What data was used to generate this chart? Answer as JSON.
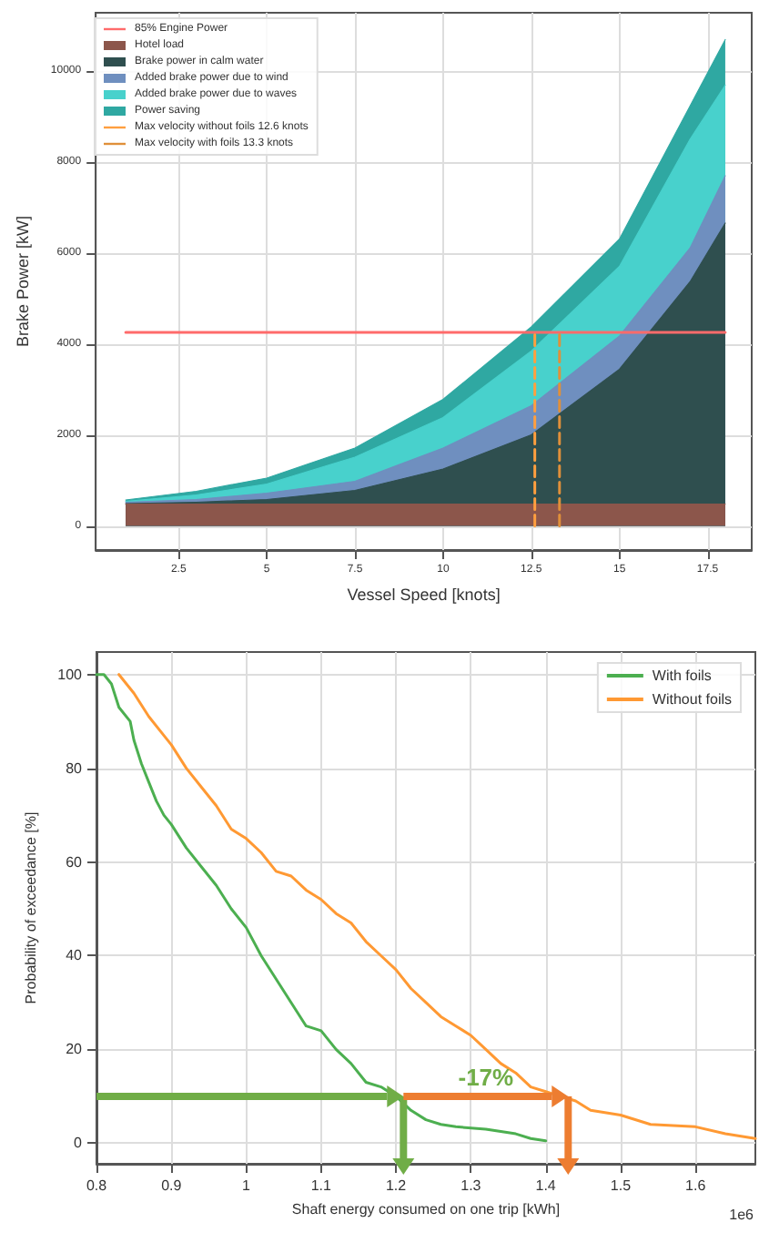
{
  "chart_data": [
    {
      "type": "area",
      "xlabel": "Vessel Speed [knots]",
      "ylabel": "Brake Power [kW]",
      "stacked": true,
      "marker": "none",
      "grid": true,
      "legend": "top left",
      "x": [
        1,
        3,
        5,
        7.5,
        10,
        12.5,
        15,
        17,
        18
      ],
      "xlim": [
        0.15,
        18.75
      ],
      "xticks": [
        2.5,
        5.0,
        7.5,
        10.0,
        12.5,
        15.0,
        17.5
      ],
      "ylim": [
        -530,
        11270
      ],
      "yticks": [
        0,
        2000,
        4000,
        6000,
        8000,
        10000
      ],
      "series": [
        {
          "name": "85% Engine Power",
          "type": "line",
          "color": "#ff6b6b",
          "x": [
            1,
            18
          ],
          "values": [
            4250,
            4250
          ]
        },
        {
          "name": "Hotel load",
          "color": "#8c564b",
          "values": [
            480,
            480,
            480,
            480,
            480,
            480,
            480,
            480,
            480
          ]
        },
        {
          "name": "Brake power in calm water",
          "color": "#2f4f4f",
          "values": [
            10,
            40,
            100,
            300,
            770,
            1520,
            2960,
            4880,
            6170
          ]
        },
        {
          "name": "Added brake power due to wind",
          "color": "#6f8fbf",
          "values": [
            30,
            60,
            140,
            200,
            460,
            640,
            730,
            740,
            1040
          ]
        },
        {
          "name": "Added brake power due to waves",
          "color": "#48d1cc",
          "values": [
            20,
            100,
            200,
            530,
            670,
            1200,
            1530,
            2390,
            1990
          ]
        },
        {
          "name": "Power saving",
          "color": "#2fa8a2",
          "values": [
            30,
            80,
            130,
            200,
            400,
            530,
            600,
            730,
            1000
          ]
        },
        {
          "name": "Max velocity without foils 12.6 knots",
          "type": "line",
          "line_style": "dashed",
          "color": "#ff9f3f",
          "x": [
            12.6,
            12.6
          ],
          "values": [
            0,
            4250
          ]
        },
        {
          "name": "Max velocity with foils 13.3 knots",
          "type": "line",
          "line_style": "dashed",
          "color": "#e0903a",
          "x": [
            13.3,
            13.3
          ],
          "values": [
            0,
            4250
          ]
        }
      ]
    },
    {
      "type": "line",
      "xlabel": "Shaft energy consumed on one trip [kWh]",
      "ylabel": "Probability of exceedance [%]",
      "marker": "none",
      "grid": true,
      "legend": "top right",
      "xlim": [
        0.8,
        1.68
      ],
      "xticks": [
        0.8,
        0.9,
        1.0,
        1.1,
        1.2,
        1.3,
        1.4,
        1.5,
        1.6
      ],
      "ylim": [
        -4.4,
        104.8
      ],
      "yticks": [
        0,
        20,
        40,
        60,
        80,
        100
      ],
      "annotations": [
        "1e6",
        "-17%"
      ],
      "ref_lines": [
        {
          "axis": "y",
          "value": 10,
          "color": "#70ad47"
        },
        {
          "axis": "x",
          "value": 1.21,
          "color": "#70ad47"
        },
        {
          "axis": "x",
          "value": 1.43,
          "color": "#ed7d31"
        }
      ],
      "series": [
        {
          "name": "With foils",
          "color": "#4caf50",
          "x": [
            0.8,
            0.81,
            0.82,
            0.83,
            0.845,
            0.85,
            0.86,
            0.87,
            0.88,
            0.89,
            0.9,
            0.92,
            0.94,
            0.96,
            0.98,
            1.0,
            1.02,
            1.04,
            1.06,
            1.08,
            1.1,
            1.12,
            1.14,
            1.16,
            1.18,
            1.2,
            1.22,
            1.24,
            1.26,
            1.28,
            1.32,
            1.36,
            1.38,
            1.4
          ],
          "values": [
            100,
            100,
            98,
            93,
            90,
            86,
            81,
            77,
            73,
            70,
            68,
            63,
            59,
            55,
            50,
            46,
            40,
            35,
            30,
            25,
            24,
            20,
            17,
            13,
            12,
            10,
            7,
            5,
            4,
            3.5,
            3,
            2,
            1,
            0.5
          ]
        },
        {
          "name": "Without foils",
          "color": "#ff9933",
          "x": [
            0.83,
            0.85,
            0.87,
            0.89,
            0.9,
            0.92,
            0.94,
            0.96,
            0.98,
            1.0,
            1.02,
            1.04,
            1.06,
            1.08,
            1.1,
            1.12,
            1.14,
            1.16,
            1.18,
            1.2,
            1.22,
            1.24,
            1.26,
            1.28,
            1.3,
            1.32,
            1.34,
            1.36,
            1.38,
            1.4,
            1.42,
            1.44,
            1.46,
            1.5,
            1.54,
            1.6,
            1.64,
            1.68
          ],
          "values": [
            100,
            96,
            91,
            87,
            85,
            80,
            76,
            72,
            67,
            65,
            62,
            58,
            57,
            54,
            52,
            49,
            47,
            43,
            40,
            37,
            33,
            30,
            27,
            25,
            23,
            20,
            17,
            15,
            12,
            11,
            10,
            9,
            7,
            6,
            4,
            3.5,
            2,
            1
          ]
        }
      ]
    }
  ]
}
